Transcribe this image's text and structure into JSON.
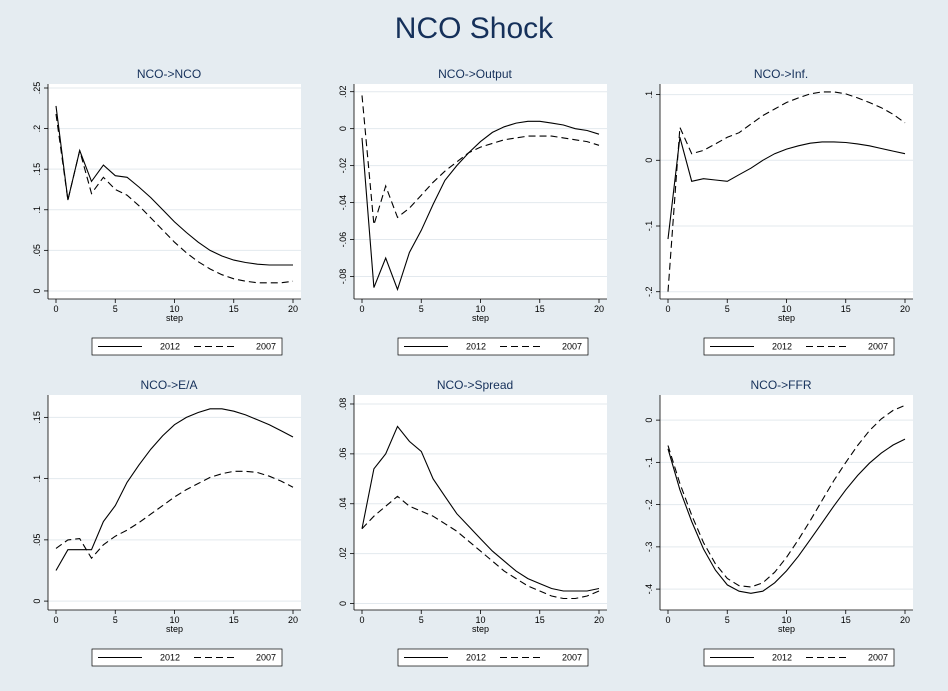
{
  "title": "NCO Shock",
  "colors": {
    "background": "#e5ecf1",
    "plot_bg": "#ffffff",
    "grid": "#e3e9ee",
    "line": "#000000",
    "title": "#15305a"
  },
  "chart_data": [
    {
      "type": "line",
      "title": "NCO->NCO",
      "xlabel": "step",
      "xlim": [
        0,
        20
      ],
      "ylim": [
        -0.005,
        0.25
      ],
      "xticks": [
        0,
        5,
        10,
        15,
        20
      ],
      "xtick_labels": [
        "0",
        "5",
        "10",
        "15",
        "20"
      ],
      "yticks": [
        0,
        0.05,
        0.1,
        0.15,
        0.2,
        0.25
      ],
      "ytick_labels": [
        "0",
        ".05",
        ".1",
        ".15",
        ".2",
        ".25"
      ],
      "legend_position": "bottom",
      "x": [
        0,
        1,
        2,
        3,
        4,
        5,
        6,
        7,
        8,
        9,
        10,
        11,
        12,
        13,
        14,
        15,
        16,
        17,
        18,
        19,
        20
      ],
      "series": [
        {
          "name": "2012",
          "style": "solid",
          "values": [
            0.228,
            0.112,
            0.173,
            0.135,
            0.155,
            0.142,
            0.14,
            0.128,
            0.115,
            0.1,
            0.085,
            0.072,
            0.06,
            0.05,
            0.043,
            0.038,
            0.035,
            0.033,
            0.032,
            0.032,
            0.032
          ]
        },
        {
          "name": "2007",
          "style": "dashed",
          "values": [
            0.218,
            0.112,
            0.173,
            0.12,
            0.14,
            0.125,
            0.118,
            0.105,
            0.09,
            0.075,
            0.06,
            0.047,
            0.036,
            0.027,
            0.02,
            0.015,
            0.012,
            0.01,
            0.01,
            0.01,
            0.012
          ]
        }
      ]
    },
    {
      "type": "line",
      "title": "NCO->Output",
      "xlabel": "step",
      "xlim": [
        0,
        20
      ],
      "ylim": [
        -0.09,
        0.022
      ],
      "xticks": [
        0,
        5,
        10,
        15,
        20
      ],
      "xtick_labels": [
        "0",
        "5",
        "10",
        "15",
        "20"
      ],
      "yticks": [
        -0.08,
        -0.06,
        -0.04,
        -0.02,
        0,
        0.02
      ],
      "ytick_labels": [
        "-.08",
        "-.06",
        "-.04",
        "-.02",
        "0",
        ".02"
      ],
      "legend_position": "bottom",
      "x": [
        0,
        1,
        2,
        3,
        4,
        5,
        6,
        7,
        8,
        9,
        10,
        11,
        12,
        13,
        14,
        15,
        16,
        17,
        18,
        19,
        20
      ],
      "series": [
        {
          "name": "2012",
          "style": "solid",
          "values": [
            -0.005,
            -0.086,
            -0.07,
            -0.087,
            -0.067,
            -0.055,
            -0.041,
            -0.028,
            -0.02,
            -0.013,
            -0.007,
            -0.002,
            0.001,
            0.003,
            0.004,
            0.004,
            0.003,
            0.002,
            0.0,
            -0.001,
            -0.003
          ]
        },
        {
          "name": "2007",
          "style": "dashed",
          "values": [
            0.018,
            -0.052,
            -0.031,
            -0.048,
            -0.043,
            -0.036,
            -0.029,
            -0.023,
            -0.018,
            -0.013,
            -0.01,
            -0.008,
            -0.006,
            -0.005,
            -0.004,
            -0.004,
            -0.004,
            -0.005,
            -0.006,
            -0.007,
            -0.009
          ]
        }
      ]
    },
    {
      "type": "line",
      "title": "NCO->Inf.",
      "xlabel": "step",
      "xlim": [
        0,
        20
      ],
      "ylim": [
        -0.205,
        0.11
      ],
      "xticks": [
        0,
        5,
        10,
        15,
        20
      ],
      "xtick_labels": [
        "0",
        "5",
        "10",
        "15",
        "20"
      ],
      "yticks": [
        -0.2,
        -0.1,
        0,
        0.1
      ],
      "ytick_labels": [
        "-.2",
        "-.1",
        "0",
        ".1"
      ],
      "legend_position": "bottom",
      "x": [
        0,
        1,
        2,
        3,
        4,
        5,
        6,
        7,
        8,
        9,
        10,
        11,
        12,
        13,
        14,
        15,
        16,
        17,
        18,
        19,
        20
      ],
      "series": [
        {
          "name": "2012",
          "style": "solid",
          "values": [
            -0.12,
            0.035,
            -0.032,
            -0.028,
            -0.03,
            -0.032,
            -0.022,
            -0.012,
            0.0,
            0.01,
            0.017,
            0.022,
            0.026,
            0.028,
            0.028,
            0.027,
            0.025,
            0.022,
            0.018,
            0.014,
            0.01
          ]
        },
        {
          "name": "2007",
          "style": "dashed",
          "values": [
            -0.2,
            0.05,
            0.01,
            0.015,
            0.025,
            0.035,
            0.042,
            0.055,
            0.068,
            0.078,
            0.088,
            0.095,
            0.101,
            0.104,
            0.104,
            0.101,
            0.095,
            0.088,
            0.08,
            0.07,
            0.057
          ]
        }
      ]
    },
    {
      "type": "line",
      "title": "NCO->E/A",
      "xlabel": "step",
      "xlim": [
        0,
        20
      ],
      "ylim": [
        -0.004,
        0.165
      ],
      "xticks": [
        0,
        5,
        10,
        15,
        20
      ],
      "xtick_labels": [
        "0",
        "5",
        "10",
        "15",
        "20"
      ],
      "yticks": [
        0,
        0.05,
        0.1,
        0.15
      ],
      "ytick_labels": [
        "0",
        ".05",
        ".1",
        ".15"
      ],
      "legend_position": "bottom",
      "x": [
        0,
        1,
        2,
        3,
        4,
        5,
        6,
        7,
        8,
        9,
        10,
        11,
        12,
        13,
        14,
        15,
        16,
        17,
        18,
        19,
        20
      ],
      "series": [
        {
          "name": "2012",
          "style": "solid",
          "values": [
            0.025,
            0.042,
            0.042,
            0.042,
            0.065,
            0.078,
            0.097,
            0.111,
            0.124,
            0.135,
            0.144,
            0.15,
            0.154,
            0.157,
            0.157,
            0.155,
            0.152,
            0.148,
            0.144,
            0.139,
            0.134
          ]
        },
        {
          "name": "2007",
          "style": "dashed",
          "values": [
            0.043,
            0.05,
            0.051,
            0.035,
            0.046,
            0.053,
            0.058,
            0.064,
            0.071,
            0.078,
            0.085,
            0.091,
            0.096,
            0.101,
            0.104,
            0.106,
            0.106,
            0.105,
            0.102,
            0.098,
            0.093
          ]
        }
      ]
    },
    {
      "type": "line",
      "title": "NCO->Spread",
      "xlabel": "step",
      "xlim": [
        0,
        20
      ],
      "ylim": [
        -0.001,
        0.082
      ],
      "xticks": [
        0,
        5,
        10,
        15,
        20
      ],
      "xtick_labels": [
        "0",
        "5",
        "10",
        "15",
        "20"
      ],
      "yticks": [
        0,
        0.02,
        0.04,
        0.06,
        0.08
      ],
      "ytick_labels": [
        "0",
        ".02",
        ".04",
        ".06",
        ".08"
      ],
      "legend_position": "bottom",
      "x": [
        0,
        1,
        2,
        3,
        4,
        5,
        6,
        7,
        8,
        9,
        10,
        11,
        12,
        13,
        14,
        15,
        16,
        17,
        18,
        19,
        20
      ],
      "series": [
        {
          "name": "2012",
          "style": "solid",
          "values": [
            0.03,
            0.054,
            0.06,
            0.071,
            0.065,
            0.061,
            0.05,
            0.043,
            0.036,
            0.031,
            0.026,
            0.021,
            0.017,
            0.013,
            0.01,
            0.008,
            0.006,
            0.005,
            0.005,
            0.005,
            0.006
          ]
        },
        {
          "name": "2007",
          "style": "dashed",
          "values": [
            0.03,
            0.035,
            0.039,
            0.043,
            0.039,
            0.037,
            0.035,
            0.032,
            0.029,
            0.025,
            0.021,
            0.017,
            0.013,
            0.01,
            0.007,
            0.005,
            0.003,
            0.002,
            0.002,
            0.003,
            0.005
          ]
        }
      ]
    },
    {
      "type": "line",
      "title": "NCO->FFR",
      "xlabel": "step",
      "xlim": [
        0,
        20
      ],
      "ylim": [
        -0.44,
        0.05
      ],
      "xticks": [
        0,
        5,
        10,
        15,
        20
      ],
      "xtick_labels": [
        "0",
        "5",
        "10",
        "15",
        "20"
      ],
      "yticks": [
        -0.4,
        -0.3,
        -0.2,
        -0.1,
        0
      ],
      "ytick_labels": [
        "-.4",
        "-.3",
        "-.2",
        "-.1",
        "0"
      ],
      "legend_position": "bottom",
      "x": [
        0,
        1,
        2,
        3,
        4,
        5,
        6,
        7,
        8,
        9,
        10,
        11,
        12,
        13,
        14,
        15,
        16,
        17,
        18,
        19,
        20
      ],
      "series": [
        {
          "name": "2012",
          "style": "solid",
          "values": [
            -0.068,
            -0.165,
            -0.24,
            -0.305,
            -0.355,
            -0.39,
            -0.405,
            -0.41,
            -0.405,
            -0.385,
            -0.357,
            -0.322,
            -0.283,
            -0.243,
            -0.203,
            -0.165,
            -0.131,
            -0.102,
            -0.078,
            -0.059,
            -0.045
          ]
        },
        {
          "name": "2007",
          "style": "dashed",
          "values": [
            -0.06,
            -0.15,
            -0.225,
            -0.29,
            -0.34,
            -0.375,
            -0.392,
            -0.395,
            -0.385,
            -0.36,
            -0.325,
            -0.283,
            -0.238,
            -0.19,
            -0.143,
            -0.1,
            -0.06,
            -0.025,
            0.003,
            0.023,
            0.035
          ]
        }
      ]
    }
  ]
}
